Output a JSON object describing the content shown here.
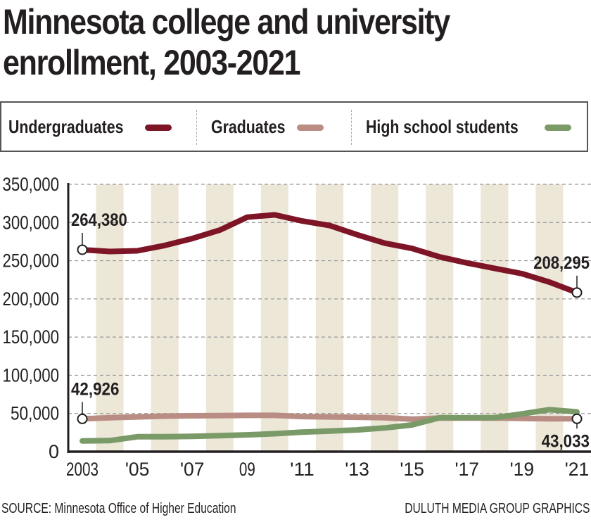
{
  "title_line1": "Minnesota college and university",
  "title_line2": "enrollment, 2003-2021",
  "legend": [
    {
      "label": "Undergraduates",
      "color": "#7e1526"
    },
    {
      "label": "Graduates",
      "color": "#b98d84"
    },
    {
      "label": "High school students",
      "color": "#7a9a68"
    }
  ],
  "source": "SOURCE: Minnesota Office of Higher Education",
  "credit": "DULUTH MEDIA GROUP GRAPHICS",
  "colors": {
    "band": "#ede7d8",
    "grid": "#999999",
    "axis": "#231f20"
  },
  "chart_data": {
    "type": "line",
    "title": "Minnesota college and university enrollment, 2003-2021",
    "xlabel": "",
    "ylabel": "",
    "x": [
      2003,
      2004,
      2005,
      2006,
      2007,
      2008,
      2009,
      2010,
      2011,
      2012,
      2013,
      2014,
      2015,
      2016,
      2017,
      2018,
      2019,
      2020,
      2021
    ],
    "x_tick_years": [
      2003,
      2005,
      2007,
      2009,
      2011,
      2013,
      2015,
      2017,
      2019,
      2021
    ],
    "x_tick_labels": [
      "2003",
      "'05",
      "'07",
      "09",
      "'11",
      "'13",
      "'15",
      "'17",
      "'19",
      "'21"
    ],
    "ylim": [
      0,
      350000
    ],
    "y_ticks": [
      0,
      50000,
      100000,
      150000,
      200000,
      250000,
      300000,
      350000
    ],
    "y_tick_labels": [
      "0",
      "50,000",
      "100,000",
      "150,000",
      "200,000",
      "250,000",
      "300,000",
      "350,000"
    ],
    "grid": true,
    "legend_position": "top",
    "series": [
      {
        "name": "Undergraduates",
        "color": "#7e1526",
        "values": [
          264380,
          262000,
          263000,
          270000,
          279000,
          290000,
          307000,
          310000,
          302000,
          296000,
          284000,
          273000,
          266000,
          255000,
          247000,
          240000,
          233000,
          222000,
          208295
        ]
      },
      {
        "name": "Graduates",
        "color": "#b98d84",
        "values": [
          42926,
          44500,
          45500,
          46500,
          47000,
          47200,
          47500,
          47500,
          46000,
          45500,
          45000,
          44500,
          42500,
          44000,
          44000,
          44000,
          43500,
          43000,
          43033
        ]
      },
      {
        "name": "High school students",
        "color": "#7a9a68",
        "values": [
          14000,
          14500,
          19500,
          19500,
          20000,
          21000,
          22000,
          23500,
          25500,
          27000,
          28500,
          31000,
          35000,
          44500,
          44500,
          44500,
          49500,
          55000,
          52000
        ]
      }
    ],
    "annotations": [
      {
        "series": "Undergraduates",
        "year": 2003,
        "text": "264,380"
      },
      {
        "series": "Undergraduates",
        "year": 2021,
        "text": "208,295"
      },
      {
        "series": "Graduates",
        "year": 2003,
        "text": "42,926"
      },
      {
        "series": "Graduates",
        "year": 2021,
        "text": "43,033"
      }
    ]
  }
}
